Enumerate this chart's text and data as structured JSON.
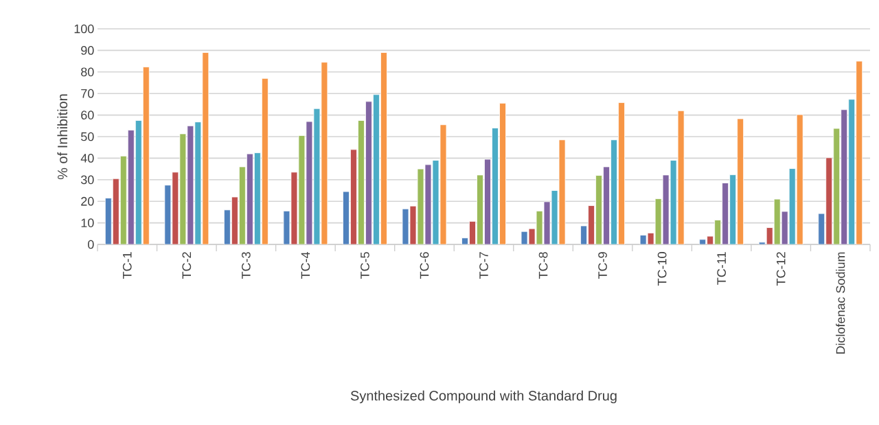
{
  "chart_data": {
    "type": "bar",
    "xlabel": "Synthesized Compound with Standard Drug",
    "ylabel": "% of Inhibition",
    "categories": [
      "TC-1",
      "TC-2",
      "TC-3",
      "TC-4",
      "TC-5",
      "TC-6",
      "TC-7",
      "TC-8",
      "TC-9",
      "TC-10",
      "TC-11",
      "TC-12",
      "Diclofenac Sodium"
    ],
    "series": [
      {
        "color": "#4f81bd",
        "values": [
          21.5,
          27.5,
          16,
          15.5,
          24.5,
          16.5,
          3,
          6,
          8.6,
          4.3,
          2.3,
          1,
          14.3
        ]
      },
      {
        "color": "#c0504d",
        "values": [
          30.5,
          33.5,
          22,
          33.5,
          44,
          17.8,
          10.7,
          7.3,
          18,
          5.3,
          3.8,
          7.8,
          40.2
        ]
      },
      {
        "color": "#9bbb59",
        "values": [
          41,
          51.3,
          36,
          50.5,
          57.5,
          35,
          32.2,
          15.5,
          32,
          21.2,
          11.3,
          21,
          53.8
        ]
      },
      {
        "color": "#8064a2",
        "values": [
          53,
          55,
          42,
          57,
          66.3,
          37,
          39.5,
          19.8,
          36,
          32.2,
          28.5,
          15.3,
          62.5
        ]
      },
      {
        "color": "#4bacc6",
        "values": [
          57.5,
          56.8,
          42.5,
          63,
          69.5,
          39,
          54,
          25,
          48.5,
          39,
          32.3,
          35.2,
          67.3
        ]
      },
      {
        "color": "#f79646",
        "values": [
          82.3,
          89,
          77,
          84.5,
          89,
          55.5,
          65.5,
          48.5,
          65.8,
          62,
          58.3,
          60.2,
          85
        ]
      }
    ],
    "ylim": [
      0,
      100
    ],
    "yticks": [
      0,
      10,
      20,
      30,
      40,
      50,
      60,
      70,
      80,
      90,
      100
    ],
    "grid": "y"
  }
}
